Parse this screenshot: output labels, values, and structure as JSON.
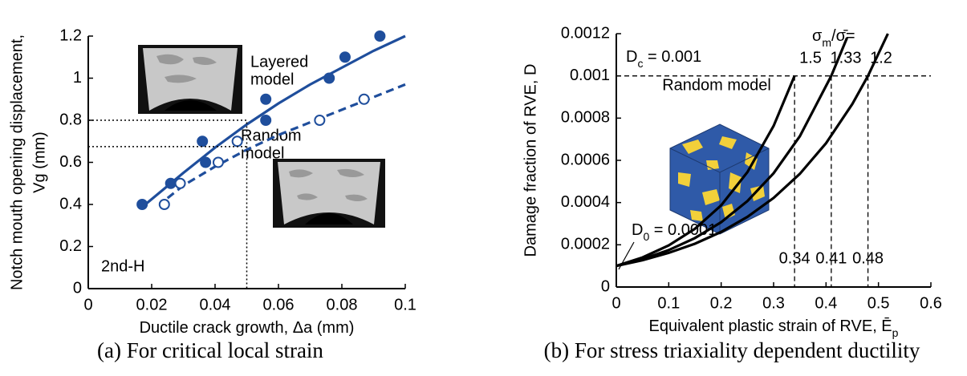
{
  "chart_data": [
    {
      "type": "scatter",
      "caption": "(a) For critical local strain",
      "ylabel": [
        "Notch mouth opening displacement,",
        "Vg (mm)"
      ],
      "xlabel": "Ductile crack growth, Δa (mm)",
      "xlim": [
        0,
        0.1
      ],
      "ylim": [
        0,
        1.2
      ],
      "xticks": [
        0,
        0.02,
        0.04,
        0.06,
        0.08,
        0.1
      ],
      "yticks": [
        0,
        0.2,
        0.4,
        0.6,
        0.8,
        1,
        1.2
      ],
      "series": [
        {
          "style": "line",
          "color": "#1f4e9c",
          "x": [
            0.018,
            0.03,
            0.04,
            0.05,
            0.06,
            0.07,
            0.08,
            0.09,
            0.1
          ],
          "values": [
            0.4,
            0.55,
            0.67,
            0.78,
            0.88,
            0.97,
            1.05,
            1.13,
            1.2
          ]
        },
        {
          "style": "dashed",
          "color": "#1f4e9c",
          "x": [
            0.025,
            0.03,
            0.04,
            0.05,
            0.06,
            0.07,
            0.08,
            0.09,
            0.1
          ],
          "values": [
            0.43,
            0.49,
            0.58,
            0.66,
            0.73,
            0.79,
            0.85,
            0.91,
            0.97
          ]
        },
        {
          "style": "filled",
          "color": "#1f4e9c",
          "x": [
            0.017,
            0.026,
            0.036,
            0.037,
            0.056,
            0.056,
            0.076,
            0.081,
            0.092
          ],
          "values": [
            0.4,
            0.5,
            0.7,
            0.6,
            0.9,
            0.8,
            1.0,
            1.1,
            1.2
          ]
        },
        {
          "style": "open",
          "color": "#1f4e9c",
          "x": [
            0.024,
            0.029,
            0.041,
            0.047,
            0.073,
            0.087
          ],
          "values": [
            0.4,
            0.5,
            0.6,
            0.7,
            0.8,
            0.9
          ]
        },
        {
          "style": "dotted",
          "color": "#000000",
          "x": [
            0,
            0.05,
            0.05
          ],
          "values": [
            0.8,
            0.8,
            0
          ]
        },
        {
          "style": "dotted",
          "color": "#000000",
          "x": [
            0,
            0.05
          ],
          "values": [
            0.675,
            0.675
          ]
        }
      ],
      "annotations": [
        {
          "lines": [
            "Layered",
            "model"
          ],
          "color": "#000000"
        },
        {
          "lines": [
            "Random",
            "model"
          ],
          "color": "#000000"
        },
        {
          "lines": [
            "2nd-H"
          ],
          "color": "#1f4e9c"
        }
      ]
    },
    {
      "type": "line",
      "caption": "(b) For stress triaxiality dependent ductility",
      "ylabel": [
        "Damage fraction of RVE, D"
      ],
      "xlabel": "Equivalent plastic strain of RVE, Ē",
      "xlabel_subscript": "p",
      "xlim": [
        0,
        0.6
      ],
      "ylim": [
        0,
        0.0012
      ],
      "xticks": [
        0,
        0.1,
        0.2,
        0.3,
        0.4,
        0.5,
        0.6
      ],
      "yticks": [
        0,
        0.0002,
        0.0004,
        0.0006,
        0.0008,
        0.001,
        0.0012
      ],
      "series": [
        {
          "name": "1.5",
          "style": "line",
          "color": "#000000",
          "x": [
            0,
            0.05,
            0.1,
            0.15,
            0.2,
            0.25,
            0.3,
            0.34
          ],
          "values": [
            0.0001,
            0.00014,
            0.000197,
            0.000276,
            0.000387,
            0.000544,
            0.000763,
            0.001
          ]
        },
        {
          "name": "1.33",
          "style": "line",
          "color": "#000000",
          "x": [
            0,
            0.05,
            0.1,
            0.15,
            0.2,
            0.25,
            0.3,
            0.35,
            0.41,
            0.44
          ],
          "values": [
            0.0001,
            0.000132,
            0.000175,
            0.000232,
            0.000307,
            0.000407,
            0.000539,
            0.000714,
            0.001,
            0.00118
          ]
        },
        {
          "name": "1.2",
          "style": "line",
          "color": "#000000",
          "x": [
            0,
            0.05,
            0.1,
            0.15,
            0.2,
            0.25,
            0.3,
            0.35,
            0.4,
            0.45,
            0.48,
            0.518
          ],
          "values": [
            0.0001,
            0.000127,
            0.000162,
            0.000205,
            0.000261,
            0.000332,
            0.000422,
            0.000536,
            0.000681,
            0.000866,
            0.001,
            0.0012
          ]
        }
      ],
      "ratio_label": {
        "symbol": "σ",
        "subscript": "m",
        "text": "/σ̄="
      },
      "dc": {
        "symbol": "D",
        "subscript": "c",
        "text": " = 0.001",
        "value": 0.001
      },
      "d0": {
        "symbol": "D",
        "subscript": "0",
        "text": " = 0.0001"
      },
      "strains": [
        0.34,
        0.41,
        0.48
      ],
      "annotations": [
        {
          "lines": [
            "Random model"
          ],
          "color": "#000000"
        }
      ]
    }
  ]
}
